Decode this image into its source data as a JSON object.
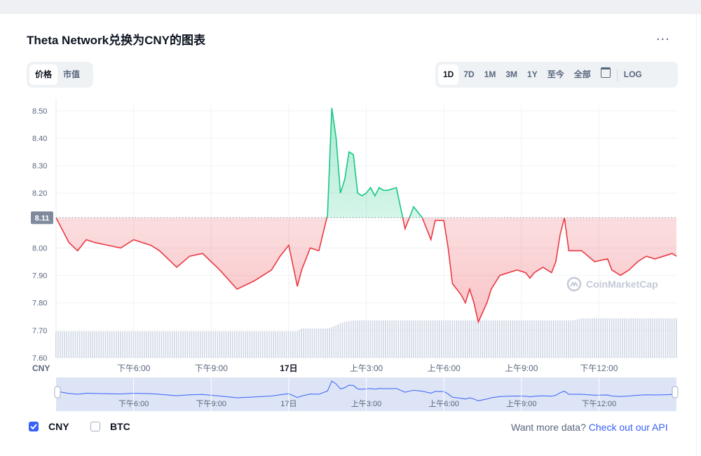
{
  "title": "Theta Network兑换为CNY的图表",
  "more_label": "...",
  "type_tabs": [
    {
      "label": "价格",
      "active": true
    },
    {
      "label": "市值",
      "active": false
    }
  ],
  "range_tabs": [
    {
      "label": "1D",
      "active": true
    },
    {
      "label": "7D",
      "active": false
    },
    {
      "label": "1M",
      "active": false
    },
    {
      "label": "3M",
      "active": false
    },
    {
      "label": "1Y",
      "active": false
    },
    {
      "label": "至今",
      "active": false
    },
    {
      "label": "全部",
      "active": false
    }
  ],
  "calendar_icon": "calendar-icon",
  "log_label": "LOG",
  "watermark": "CoinMarketCap",
  "legend": [
    {
      "label": "CNY",
      "checked": true
    },
    {
      "label": "BTC",
      "checked": false
    }
  ],
  "more_data_text": "Want more data?",
  "more_data_link": "Check out our API",
  "colors": {
    "up": "#16c784",
    "down": "#ea3943",
    "accent": "#3861fb",
    "volume": "#cfd6e4"
  },
  "chart_data": {
    "type": "line",
    "currency_label": "CNY",
    "reference_value": 8.11,
    "reference_label": "8.11",
    "ylim": [
      7.6,
      8.52
    ],
    "y_ticks": [
      "8.50",
      "8.40",
      "8.30",
      "8.20",
      "8.10",
      "8.00",
      "7.90",
      "7.80",
      "7.70",
      "7.60"
    ],
    "y_tick_values": [
      8.5,
      8.4,
      8.3,
      8.2,
      8.1,
      8.0,
      7.9,
      7.8,
      7.7,
      7.6
    ],
    "xlim": [
      0,
      288
    ],
    "x_tick_positions": [
      36,
      72,
      108,
      144,
      180,
      216,
      252
    ],
    "x_tick_labels": [
      "下午6:00",
      "下午9:00",
      "17日",
      "上午3:00",
      "上午6:00",
      "上午9:00",
      "下午12:00"
    ],
    "x": [
      0,
      6,
      10,
      14,
      18,
      24,
      30,
      36,
      40,
      44,
      48,
      56,
      62,
      68,
      76,
      84,
      92,
      100,
      104,
      108,
      112,
      114,
      118,
      122,
      126,
      128,
      130,
      132,
      134,
      136,
      138,
      140,
      142,
      144,
      146,
      148,
      150,
      152,
      154,
      158,
      162,
      166,
      170,
      174,
      176,
      178,
      180,
      182,
      184,
      186,
      188,
      190,
      192,
      194,
      196,
      200,
      202,
      206,
      210,
      214,
      218,
      220,
      222,
      224,
      226,
      228,
      230,
      232,
      234,
      236,
      238,
      240,
      244,
      250,
      256,
      258,
      262,
      266,
      270,
      274,
      278,
      282,
      286,
      288
    ],
    "series": [
      {
        "values": [
          8.11,
          8.02,
          7.99,
          8.03,
          8.02,
          8.01,
          8.0,
          8.03,
          8.02,
          8.01,
          7.99,
          7.93,
          7.97,
          7.98,
          7.92,
          7.85,
          7.88,
          7.92,
          7.97,
          8.01,
          7.86,
          7.92,
          8.0,
          7.99,
          8.12,
          8.51,
          8.4,
          8.2,
          8.25,
          8.35,
          8.34,
          8.2,
          8.19,
          8.2,
          8.22,
          8.19,
          8.22,
          8.21,
          8.21,
          8.22,
          8.07,
          8.15,
          8.11,
          8.03,
          8.1,
          8.1,
          8.1,
          8.0,
          7.87,
          7.85,
          7.83,
          7.8,
          7.85,
          7.8,
          7.73,
          7.8,
          7.85,
          7.9,
          7.91,
          7.92,
          7.91,
          7.89,
          7.91,
          7.92,
          7.93,
          7.92,
          7.91,
          7.95,
          8.05,
          8.11,
          7.99,
          7.99,
          7.99,
          7.95,
          7.96,
          7.92,
          7.9,
          7.92,
          7.95,
          7.97,
          7.96,
          7.97,
          7.98,
          7.97
        ]
      }
    ],
    "volume": [
      0.65,
      0.65,
      0.65,
      0.65,
      0.65,
      0.65,
      0.65,
      0.65,
      0.65,
      0.65,
      0.65,
      0.65,
      0.65,
      0.65,
      0.65,
      0.65,
      0.65,
      0.65,
      0.65,
      0.65,
      0.65,
      0.72,
      0.72,
      0.72,
      0.72,
      0.75,
      0.8,
      0.85,
      0.88,
      0.9,
      0.92,
      0.92,
      0.92,
      0.92,
      0.92,
      0.92,
      0.92,
      0.92,
      0.92,
      0.92,
      0.92,
      0.92,
      0.92,
      0.92,
      0.92,
      0.92,
      0.92,
      0.92,
      0.92,
      0.92,
      0.92,
      0.92,
      0.92,
      0.92,
      0.92,
      0.92,
      0.92,
      0.92,
      0.92,
      0.92,
      0.92,
      0.92,
      0.92,
      0.92,
      0.92,
      0.92,
      0.92,
      0.92,
      0.92,
      0.92,
      0.92,
      0.92,
      0.97,
      0.97,
      0.97,
      0.97,
      0.97,
      0.97,
      0.97,
      0.97,
      0.97,
      0.97,
      0.97,
      0.97
    ]
  }
}
